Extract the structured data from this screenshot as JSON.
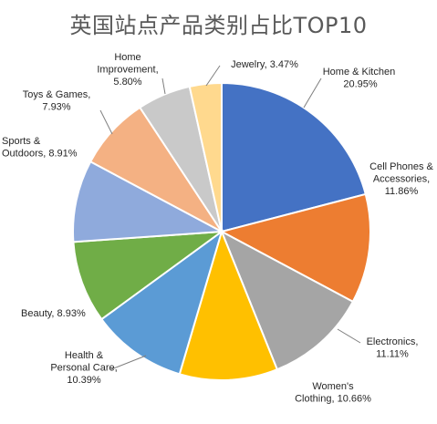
{
  "chart_data": {
    "type": "pie",
    "title": "英国站点产品类别占比TOP10",
    "start_angle_deg": 90,
    "direction": "clockwise",
    "slices": [
      {
        "label": "Home & Kitchen",
        "pct_text": "20.95%",
        "value": 20.95,
        "color": "#4472C4"
      },
      {
        "label": "Cell Phones & Accessories",
        "pct_text": "11.86%",
        "value": 11.86,
        "color": "#ED7D31"
      },
      {
        "label": "Electronics",
        "pct_text": "11.11%",
        "value": 11.11,
        "color": "#A5A5A5"
      },
      {
        "label": "Women's Clothing",
        "pct_text": "10.66%",
        "value": 10.66,
        "color": "#FFC000"
      },
      {
        "label": "Health & Personal Care",
        "pct_text": "10.39%",
        "value": 10.39,
        "color": "#5B9BD5"
      },
      {
        "label": "Beauty",
        "pct_text": "8.93%",
        "value": 8.93,
        "color": "#70AD47"
      },
      {
        "label": "Sports & Outdoors",
        "pct_text": "8.91%",
        "value": 8.91,
        "color": "#8FAADC"
      },
      {
        "label": "Toys & Games",
        "pct_text": "7.93%",
        "value": 7.93,
        "color": "#F4B183"
      },
      {
        "label": "Home Improvement",
        "pct_text": "5.80%",
        "value": 5.8,
        "color": "#C9C9C9"
      },
      {
        "label": "Jewelry",
        "pct_text": "3.47%",
        "value": 3.47,
        "color": "#FFD98E"
      }
    ]
  }
}
